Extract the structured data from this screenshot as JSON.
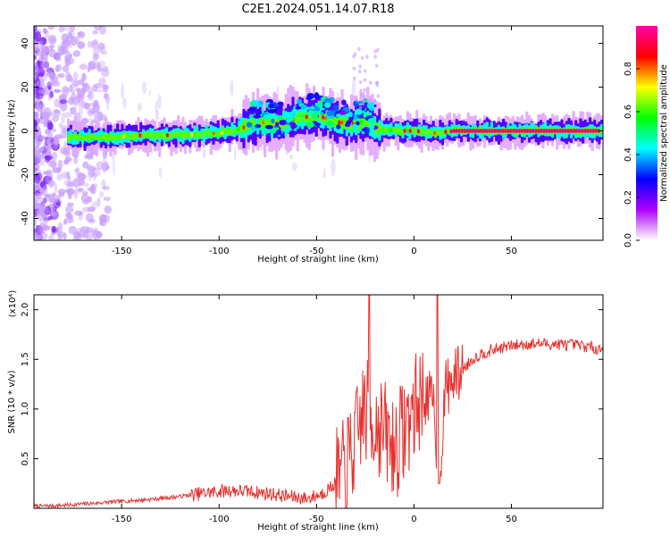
{
  "title": "C2E1.2024.051.14.07.R18",
  "chart_data": [
    {
      "type": "heatmap",
      "xlabel": "Height of straight line (km)",
      "ylabel": "Frequency (Hz)",
      "xlim": [
        -195,
        97
      ],
      "ylim": [
        -50,
        48
      ],
      "xticks": [
        -150,
        -100,
        -50,
        0,
        50
      ],
      "yticks": [
        -40,
        -20,
        0,
        20,
        40
      ],
      "grid": false,
      "colorbar": {
        "label": "Normalized spectral amplitude",
        "range": [
          0,
          1
        ],
        "ticks": [
          "0.0",
          "0.2",
          "0.4",
          "0.6",
          "0.8"
        ],
        "colors": [
          "#ffffff",
          "#b000ff",
          "#0000ff",
          "#00ffff",
          "#00ff00",
          "#ffff00",
          "#ff0000",
          "#ff00aa"
        ]
      },
      "ridge": {
        "x": [
          -178,
          -160,
          -140,
          -120,
          -100,
          -90,
          -80,
          -70,
          -60,
          -50,
          -40,
          -30,
          -25,
          -20,
          -10,
          0,
          10,
          20,
          40,
          60,
          80,
          95
        ],
        "y": [
          -3,
          -3,
          -2,
          -2,
          -1,
          1,
          4,
          3,
          6,
          7,
          4,
          3,
          5,
          1,
          0,
          0,
          -1,
          0,
          0,
          0,
          0,
          0
        ]
      }
    },
    {
      "type": "line",
      "xlabel": "Height of straight line (km)",
      "ylabel": "SNR (10 * v/v)",
      "y_multiplier_label": "(x10⁴)",
      "xlim": [
        -195,
        97
      ],
      "ylim": [
        0,
        2.15
      ],
      "xticks": [
        -150,
        -100,
        -50,
        0,
        50
      ],
      "yticks": [
        "0.5",
        "1.0",
        "1.5",
        "2.0"
      ],
      "grid": false,
      "color": "#e8322e",
      "series": [
        {
          "x": [
            -195,
            -180,
            -165,
            -150,
            -135,
            -120,
            -105,
            -95,
            -85,
            -75,
            -65,
            -55,
            -48,
            -42,
            -36,
            -30,
            -26,
            -22,
            -18,
            -15,
            -10,
            -5,
            0,
            5,
            10,
            13,
            16,
            20,
            25,
            30,
            35,
            45,
            55,
            65,
            75,
            85,
            97
          ],
          "y": [
            0.02,
            0.03,
            0.05,
            0.07,
            0.09,
            0.12,
            0.16,
            0.18,
            0.17,
            0.15,
            0.12,
            0.1,
            0.14,
            0.22,
            0.35,
            0.65,
            1.0,
            0.9,
            0.85,
            0.75,
            0.6,
            0.8,
            1.0,
            1.15,
            1.05,
            0.25,
            1.2,
            1.3,
            1.4,
            1.5,
            1.56,
            1.62,
            1.65,
            1.66,
            1.65,
            1.64,
            1.6
          ]
        }
      ]
    }
  ]
}
